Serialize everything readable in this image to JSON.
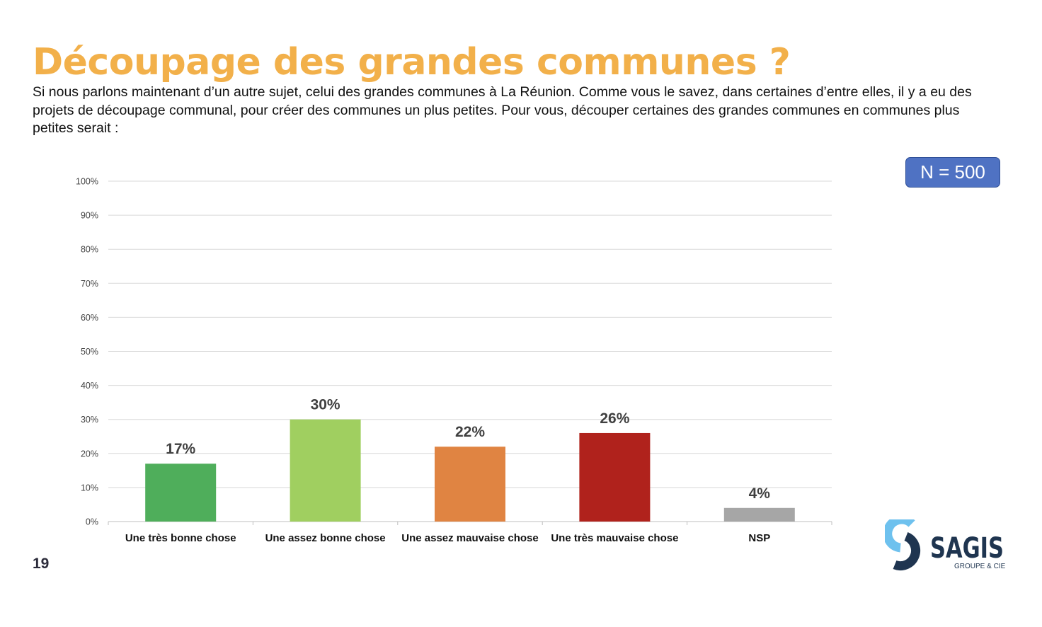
{
  "title": "Découpage des grandes communes ?",
  "question": "Si nous parlons maintenant d’un autre sujet, celui des grandes communes à La Réunion. Comme vous le savez, dans certaines d’entre elles, il y a eu des projets de découpage communal, pour créer des communes un plus petites. Pour vous, découper certaines des grandes communes en communes plus petites serait :",
  "sample_badge": "N = 500",
  "page_number": "19",
  "logo": {
    "name": "SAGIS",
    "tagline": "GROUPE & CIE"
  },
  "chart_data": {
    "type": "bar",
    "categories": [
      "Une très bonne chose",
      "Une assez bonne chose",
      "Une assez mauvaise chose",
      "Une très mauvaise chose",
      "NSP"
    ],
    "values": [
      17,
      30,
      22,
      26,
      4
    ],
    "data_labels": [
      "17%",
      "30%",
      "22%",
      "26%",
      "4%"
    ],
    "colors": [
      "#4FAE5B",
      "#A0CF60",
      "#E08442",
      "#B0221C",
      "#A6A6A6"
    ],
    "ylim": [
      0,
      100
    ],
    "yticks": [
      "0%",
      "10%",
      "20%",
      "30%",
      "40%",
      "50%",
      "60%",
      "70%",
      "80%",
      "90%",
      "100%"
    ],
    "grid": true,
    "xlabel": "",
    "ylabel": ""
  }
}
